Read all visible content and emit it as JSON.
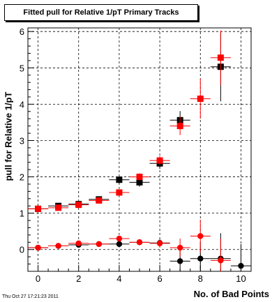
{
  "chart_data": {
    "type": "scatter",
    "title": "Fitted pull for Relative 1/pT Primary Tracks",
    "xlabel": "No. of Bad Points",
    "ylabel": "pull for Relative 1/pT",
    "xlim": [
      -0.5,
      10.5
    ],
    "ylim": [
      -0.6,
      6.1
    ],
    "x_ticks": [
      "0",
      "2",
      "4",
      "6",
      "8",
      "10"
    ],
    "y_ticks": [
      "0",
      "1",
      "2",
      "3",
      "4",
      "5",
      "6"
    ],
    "grid": true,
    "series": [
      {
        "color": "#000000",
        "marker": "square",
        "x": [
          0,
          1,
          2,
          3,
          4,
          5,
          6,
          7,
          9
        ],
        "y": [
          1.12,
          1.2,
          1.25,
          1.38,
          1.92,
          1.85,
          2.37,
          3.56,
          5.03
        ],
        "yerr": [
          0.04,
          0.04,
          0.05,
          0.06,
          0.1,
          0.12,
          0.15,
          0.25,
          0.95
        ]
      },
      {
        "color": "#ff0000",
        "marker": "square",
        "x": [
          0,
          1,
          2,
          3,
          4,
          5,
          6,
          7,
          8,
          9
        ],
        "y": [
          1.12,
          1.15,
          1.23,
          1.35,
          1.57,
          2.0,
          2.45,
          3.4,
          4.15,
          5.28
        ],
        "yerr": [
          0.04,
          0.04,
          0.05,
          0.06,
          0.08,
          0.1,
          0.12,
          0.25,
          0.55,
          0.75
        ]
      },
      {
        "color": "#000000",
        "marker": "circle",
        "x": [
          0,
          1,
          2,
          3,
          4,
          5,
          6,
          7,
          8,
          9,
          10
        ],
        "y": [
          0.05,
          0.1,
          0.13,
          0.15,
          0.15,
          0.2,
          0.18,
          -0.32,
          -0.25,
          -0.25,
          -0.45
        ],
        "yerr": [
          0.03,
          0.03,
          0.04,
          0.05,
          0.07,
          0.08,
          0.1,
          0.35,
          0.45,
          0.7,
          0.6
        ]
      },
      {
        "color": "#ff0000",
        "marker": "circle",
        "x": [
          0,
          1,
          2,
          3,
          4,
          5,
          6,
          7,
          8,
          9
        ],
        "y": [
          0.05,
          0.1,
          0.17,
          0.15,
          0.3,
          0.2,
          0.17,
          0.05,
          0.37,
          -0.3
        ],
        "yerr": [
          0.03,
          0.03,
          0.04,
          0.05,
          0.07,
          0.08,
          0.1,
          0.25,
          0.45,
          0.6
        ]
      }
    ]
  },
  "timestamp": "Thu Oct 27 17:21:23 2011"
}
